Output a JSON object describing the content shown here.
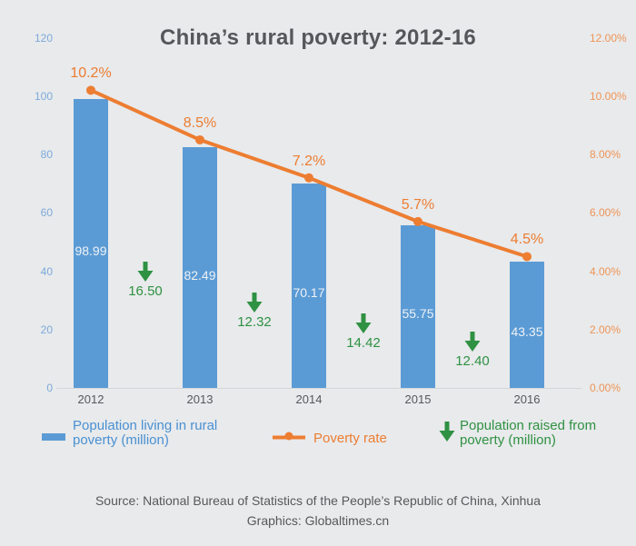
{
  "chart_data": {
    "type": "bar+line",
    "title": "China’s rural poverty: 2012-16",
    "categories": [
      "2012",
      "2013",
      "2014",
      "2015",
      "2016"
    ],
    "series": [
      {
        "name": "Population living in rural poverty (million)",
        "type": "bar",
        "values": [
          98.99,
          82.49,
          70.17,
          55.75,
          43.35
        ],
        "value_labels": [
          "98.99",
          "82.49",
          "70.17",
          "55.75",
          "43.35"
        ],
        "color": "#5b9bd5"
      },
      {
        "name": "Poverty rate",
        "type": "line",
        "values": [
          10.2,
          8.5,
          7.2,
          5.7,
          4.5
        ],
        "value_labels": [
          "10.2%",
          "8.5%",
          "7.2%",
          "5.7%",
          "4.5%"
        ],
        "color": "#ed7d31"
      },
      {
        "name": "Population raised from poverty (million)",
        "type": "arrow-annotation",
        "values": [
          16.5,
          12.32,
          14.42,
          12.4
        ],
        "value_labels": [
          "16.50",
          "12.32",
          "14.42",
          "12.40"
        ],
        "color": "#2f9142"
      }
    ],
    "left_axis": {
      "ticks": [
        "120",
        "100",
        "80",
        "60",
        "40",
        "20",
        "0"
      ],
      "min": 0,
      "max": 120,
      "color": "#7ea9da"
    },
    "right_axis": {
      "ticks": [
        "12.00%",
        "10.00%",
        "8.00%",
        "6.00%",
        "4.00%",
        "2.00%",
        "0.00%"
      ],
      "min": 0,
      "max": 12,
      "color": "#ef9455"
    },
    "grid": false,
    "legend_position": "bottom",
    "background_color": "#e8eaec"
  },
  "source": {
    "line1": "Source: National Bureau of Statistics of the People’s Republic of China, Xinhua",
    "line2": "Graphics: Globaltimes.cn"
  }
}
